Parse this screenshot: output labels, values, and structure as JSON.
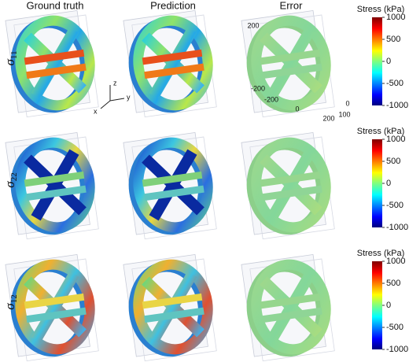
{
  "columns": [
    "Ground truth",
    "Prediction",
    "Error"
  ],
  "rows": [
    {
      "symbol": "σ",
      "subscript": "11",
      "colorbar": {
        "title": "Stress (kPa)",
        "ticks": [
          1000,
          500,
          0,
          -500,
          -1000
        ]
      }
    },
    {
      "symbol": "σ",
      "subscript": "22",
      "colorbar": {
        "title": "Stress (kPa)",
        "ticks": [
          1000,
          500,
          0,
          -500,
          -1000
        ]
      }
    },
    {
      "symbol": "σ",
      "subscript": "12",
      "colorbar": {
        "title": "Stress (kPa)",
        "ticks": [
          1000,
          500,
          0,
          -500,
          -1000
        ]
      }
    }
  ],
  "axes": {
    "z": "z",
    "y": "y",
    "x": "x",
    "error_ticks": [
      "200",
      "-200",
      "-200",
      "0",
      "200",
      "100",
      "0"
    ]
  }
}
